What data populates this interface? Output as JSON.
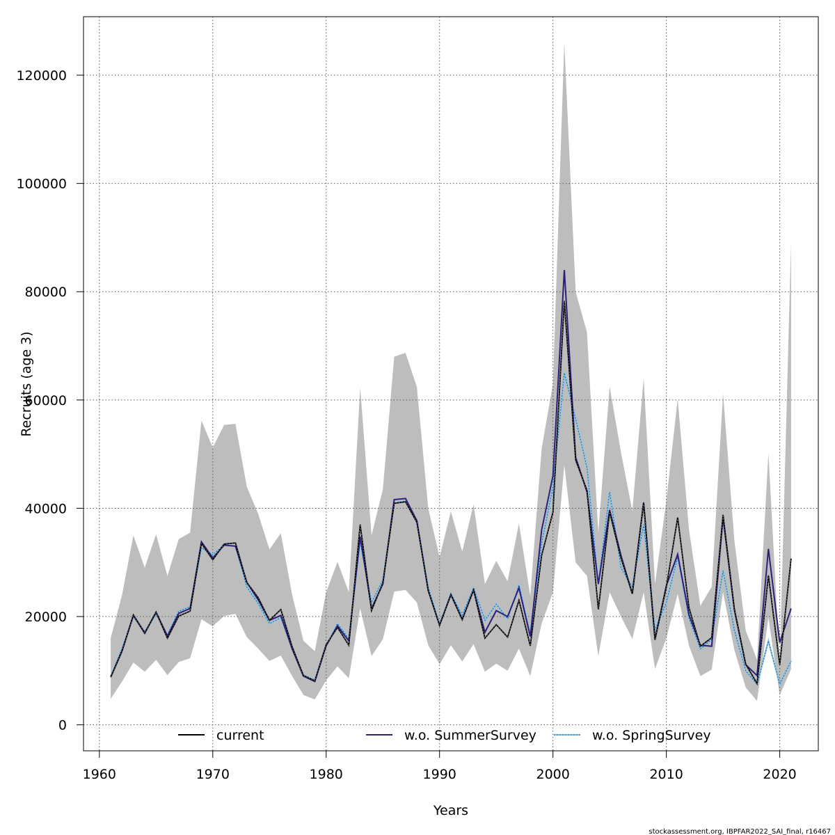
{
  "chart_data": {
    "type": "line",
    "xlabel": "Years",
    "ylabel": "Recruits (age 3)",
    "xlim": [
      1958.6,
      2023.4
    ],
    "ylim": [
      -4800,
      130800
    ],
    "xticks": [
      "1960",
      "1970",
      "1980",
      "1990",
      "2000",
      "2010",
      "2020"
    ],
    "yticks": [
      "0",
      "20000",
      "40000",
      "60000",
      "80000",
      "100000",
      "120000"
    ],
    "grid": true,
    "legend_position": "bottom",
    "footer": "stockassessment.org, IBPFAR2022_SAI_final, r16467",
    "x": [
      1961,
      1962,
      1963,
      1964,
      1965,
      1966,
      1967,
      1968,
      1969,
      1970,
      1971,
      1972,
      1973,
      1974,
      1975,
      1976,
      1977,
      1978,
      1979,
      1980,
      1981,
      1982,
      1983,
      1984,
      1985,
      1986,
      1987,
      1988,
      1989,
      1990,
      1991,
      1992,
      1993,
      1994,
      1995,
      1996,
      1997,
      1998,
      1999,
      2000,
      2001,
      2002,
      2003,
      2004,
      2005,
      2006,
      2007,
      2008,
      2009,
      2010,
      2011,
      2012,
      2013,
      2014,
      2015,
      2016,
      2017,
      2018,
      2019,
      2020,
      2021
    ],
    "ci_band": {
      "upper": [
        16000,
        24000,
        35000,
        29000,
        35200,
        27500,
        34300,
        35500,
        56200,
        51200,
        55400,
        55600,
        44000,
        39000,
        32400,
        35400,
        24000,
        15500,
        13600,
        24500,
        30100,
        24500,
        62300,
        35000,
        43500,
        68000,
        68700,
        62400,
        40000,
        31000,
        39400,
        32000,
        40700,
        26000,
        30300,
        26500,
        37200,
        23800,
        51000,
        63000,
        126000,
        80000,
        72500,
        35500,
        62500,
        50300,
        39500,
        64000,
        26000,
        41400,
        60200,
        36000,
        22000,
        25500,
        61200,
        34000,
        17400,
        12000,
        50200,
        11500,
        89200
      ],
      "lower": [
        4800,
        8000,
        11500,
        9800,
        12000,
        9200,
        11600,
        12300,
        19500,
        18200,
        20100,
        20500,
        16200,
        14100,
        11800,
        12800,
        9000,
        5500,
        4700,
        8200,
        10800,
        8600,
        21500,
        12700,
        15800,
        24600,
        24900,
        22600,
        14700,
        11200,
        14700,
        11700,
        14900,
        9800,
        11300,
        10000,
        14100,
        9000,
        18700,
        24500,
        48000,
        30000,
        27500,
        12700,
        24500,
        20000,
        15900,
        24500,
        10300,
        16000,
        24200,
        14600,
        9000,
        10200,
        24500,
        13800,
        6900,
        4400,
        19800,
        5500,
        10300
      ]
    },
    "series": [
      {
        "name": "current",
        "color": "#000000",
        "dash": "solid",
        "values": [
          8800,
          13700,
          20300,
          17000,
          20800,
          16000,
          20100,
          21000,
          33500,
          30500,
          33400,
          33600,
          26300,
          23500,
          19300,
          21300,
          14400,
          9100,
          8100,
          14800,
          18000,
          14700,
          37000,
          21100,
          26200,
          40900,
          41200,
          37400,
          24800,
          18400,
          24000,
          19400,
          24900,
          16000,
          18500,
          16200,
          23000,
          14600,
          31300,
          39300,
          78300,
          48900,
          43300,
          21300,
          39300,
          30800,
          24200,
          41000,
          15700,
          25400,
          38300,
          21600,
          14500,
          16100,
          38800,
          21400,
          11200,
          7600,
          27600,
          11100,
          30700
        ]
      },
      {
        "name": "w.o. SummerSurvey",
        "color": "#2c1f78",
        "dash": "solid",
        "values": [
          8800,
          13600,
          20200,
          16900,
          20800,
          16400,
          20600,
          21500,
          33800,
          30800,
          33200,
          33000,
          26300,
          23100,
          19300,
          20200,
          14000,
          9000,
          8000,
          14600,
          18300,
          15500,
          34800,
          21500,
          26000,
          41600,
          41800,
          37700,
          24800,
          18400,
          24100,
          19500,
          24900,
          17100,
          21100,
          20000,
          25300,
          16300,
          36000,
          46000,
          84000,
          49400,
          43000,
          26000,
          39700,
          31300,
          24200,
          41100,
          15800,
          25700,
          31500,
          20300,
          14700,
          14500,
          38300,
          21200,
          11100,
          9100,
          32500,
          15200,
          21500
        ]
      },
      {
        "name": "w.o. SpringSurvey",
        "color": "#7fc3f0",
        "dash": "dotted",
        "values": [
          8900,
          14100,
          20000,
          17200,
          20500,
          16600,
          21000,
          21800,
          32700,
          31400,
          33300,
          33000,
          25500,
          22400,
          18700,
          19800,
          14000,
          9200,
          8300,
          14500,
          18700,
          15900,
          33800,
          22600,
          26700,
          41000,
          41300,
          37400,
          25400,
          18600,
          24200,
          20300,
          25300,
          19300,
          22300,
          19600,
          25800,
          16700,
          33500,
          44000,
          65000,
          56500,
          47500,
          26000,
          43000,
          29000,
          25500,
          37000,
          17500,
          22600,
          31000,
          19700,
          14000,
          15800,
          28500,
          17500,
          10000,
          7500,
          15500,
          7500,
          11800
        ]
      }
    ]
  }
}
